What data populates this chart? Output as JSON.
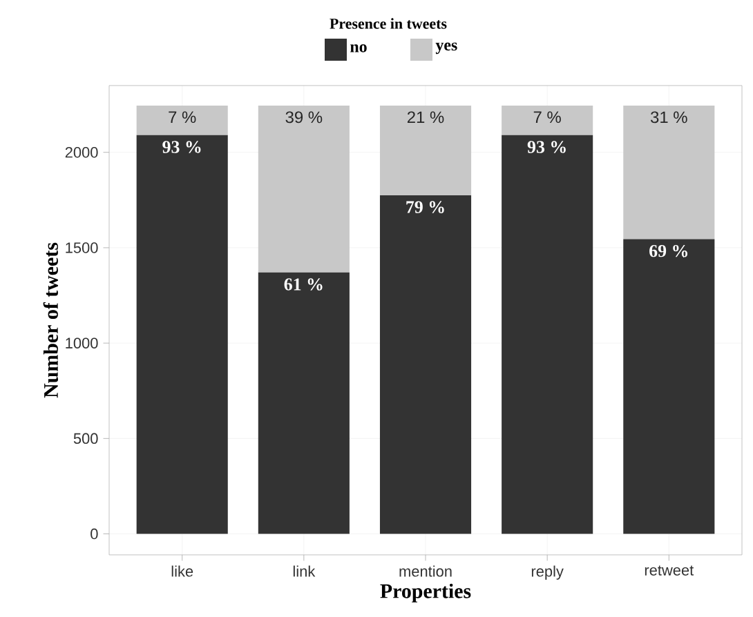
{
  "chart_data": {
    "type": "bar",
    "stacked": true,
    "xlabel": "Properties",
    "ylabel": "Number of tweets",
    "legend_title": "Presence in tweets",
    "legend": "top",
    "grid": true,
    "categories": [
      "like",
      "link",
      "mention",
      "reply",
      "retweet"
    ],
    "series": [
      {
        "name": "no",
        "color": "#333333",
        "values": [
          2090,
          1370,
          1775,
          2090,
          1545
        ]
      },
      {
        "name": "yes",
        "color": "#c8c8c8",
        "values": [
          155,
          875,
          470,
          155,
          700
        ]
      }
    ],
    "annotations": [
      {
        "text": "7 %",
        "x": "like",
        "y": 2245
      },
      {
        "text": "93 %",
        "x": "like",
        "y": 2090
      },
      {
        "text": "39 %",
        "x": "link",
        "y": 2245
      },
      {
        "text": "61 %",
        "x": "link",
        "y": 1370
      },
      {
        "text": "21 %",
        "x": "mention",
        "y": 2245
      },
      {
        "text": "79 %",
        "x": "mention",
        "y": 1775
      },
      {
        "text": "7 %",
        "x": "reply",
        "y": 2245
      },
      {
        "text": "93 %",
        "x": "reply",
        "y": 2090
      },
      {
        "text": "31 %",
        "x": "retweet",
        "y": 2245
      },
      {
        "text": "69 %",
        "x": "retweet",
        "y": 1545
      }
    ],
    "ylim": [
      -110,
      2350
    ],
    "yticks": [
      0,
      500,
      1000,
      1500,
      2000
    ]
  }
}
